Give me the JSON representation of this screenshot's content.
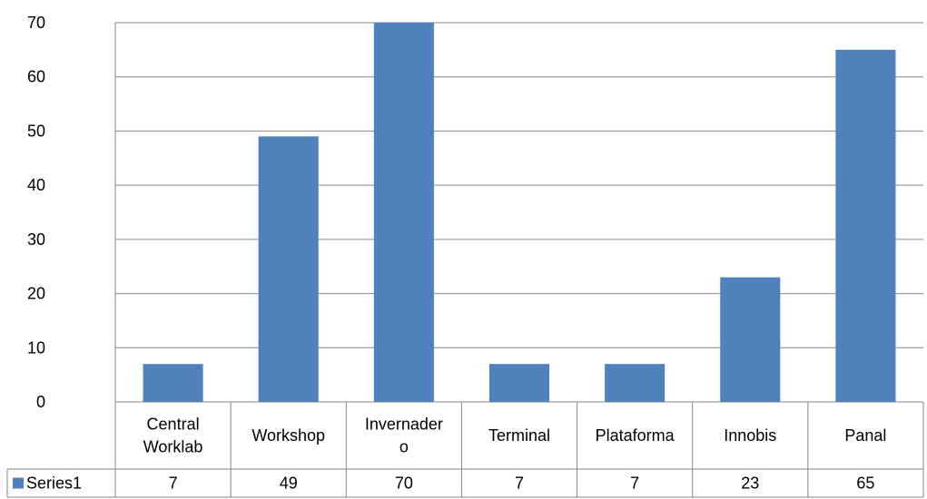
{
  "chart_data": {
    "type": "bar",
    "categories": [
      [
        "Central",
        "Worklab"
      ],
      [
        "Workshop"
      ],
      [
        "Invernader",
        "o"
      ],
      [
        "Terminal"
      ],
      [
        "Plataforma"
      ],
      [
        "Innobis"
      ],
      [
        "Panal"
      ]
    ],
    "series": [
      {
        "name": "Series1",
        "values": [
          7,
          49,
          70,
          7,
          7,
          23,
          65
        ]
      }
    ],
    "y_ticks": [
      "0",
      "10",
      "20",
      "30",
      "40",
      "50",
      "60",
      "70"
    ],
    "ylim": [
      0,
      70
    ],
    "title": "",
    "xlabel": "",
    "ylabel": "",
    "grid": true,
    "legend_placement": "data-table",
    "data_table": true,
    "colors": {
      "bar": "#4F81BD",
      "grid": "#878787",
      "axis": "#878787"
    }
  }
}
